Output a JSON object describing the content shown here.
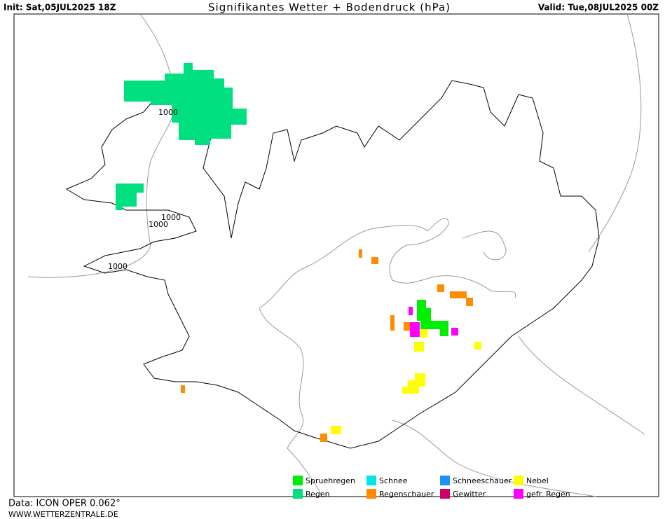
{
  "header": {
    "init": "Init: Sat,05JUL2025 18Z",
    "title": "Signifikantes Wetter +  Bodendruck (hPa)",
    "valid": "Valid: Tue,08JUL2025 00Z"
  },
  "isobar_labels": [
    "1000",
    "1000",
    "1000",
    "1000"
  ],
  "legend": {
    "items": [
      {
        "label": "Spruehregen",
        "color": "#00ee00"
      },
      {
        "label": "Schnee",
        "color": "#00e5e5"
      },
      {
        "label": "Schneeschauer",
        "color": "#1e90ff"
      },
      {
        "label": "Nebel",
        "color": "#ffff00"
      },
      {
        "label": "Regen",
        "color": "#00e080"
      },
      {
        "label": "Regenschauer",
        "color": "#ff8c00"
      },
      {
        "label": "Gewitter",
        "color": "#cc0066"
      },
      {
        "label": "gefr. Regen",
        "color": "#ff00ff"
      }
    ]
  },
  "footer": {
    "data": "Data: ICON OPER 0.062°",
    "source": "WWW.WETTERZENTRALE.DE"
  }
}
